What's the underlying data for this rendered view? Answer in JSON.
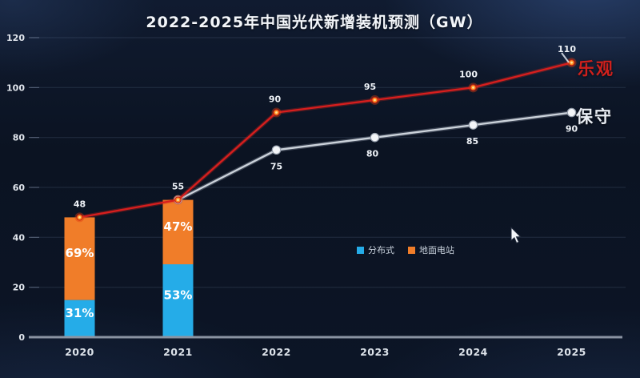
{
  "chart_data": {
    "type": "combo-bar-line",
    "title": "2022-2025年中国光伏新增装机预测（GW）",
    "categories": [
      "2020",
      "2021",
      "2022",
      "2023",
      "2024",
      "2025"
    ],
    "y_axis": {
      "min": 0,
      "max": 120,
      "tick_step": 20,
      "tick_labels": [
        "0",
        "20",
        "40",
        "60",
        "80",
        "100",
        "120"
      ]
    },
    "grid": true,
    "bar_series": [
      {
        "name": "分布式",
        "color": "#25ace8",
        "share_pct": [
          31,
          53
        ],
        "values_gw": [
          14.9,
          29.2
        ],
        "labels": [
          "31%",
          "53%"
        ]
      },
      {
        "name": "地面电站",
        "color": "#f07d29",
        "share_pct": [
          69,
          47
        ],
        "values_gw": [
          33.1,
          25.8
        ],
        "labels": [
          "69%",
          "47%"
        ]
      }
    ],
    "bar_totals": {
      "values": [
        48,
        55
      ],
      "labels": [
        "48",
        "55"
      ]
    },
    "line_series": [
      {
        "name": "乐观",
        "color": "#d71e1e",
        "glow": "rgba(220,40,25,0.30)",
        "marker": "red-glow-dot",
        "values": [
          48,
          55,
          90,
          95,
          100,
          110
        ],
        "labels": [
          "48",
          "55",
          "90",
          "95",
          "100",
          "110"
        ],
        "label_side": "above",
        "label_dx": [
          0,
          0,
          -2,
          -6,
          -6,
          -6
        ]
      },
      {
        "name": "保守",
        "color": "#ccd3db",
        "glow": "rgba(210,220,235,0.25)",
        "marker": "white-dot",
        "values": [
          null,
          55,
          75,
          80,
          85,
          90
        ],
        "labels": [
          "",
          "",
          "75",
          "80",
          "85",
          "90"
        ],
        "label_side": "below",
        "label_dx": [
          0,
          0,
          0,
          -3,
          -1,
          0
        ]
      }
    ],
    "legend": [
      {
        "label": "分布式",
        "color": "#25ace8"
      },
      {
        "label": "地面电站",
        "color": "#f07d29"
      }
    ],
    "end_labels": [
      {
        "text": "乐观",
        "color": "#cf201c"
      },
      {
        "text": "保守",
        "color": "#e9edf3"
      }
    ],
    "legend_position": "inside-center-right",
    "colors": {
      "background": "#0c1424",
      "axis": "#8a93a2",
      "grid": "rgba(150,170,205,0.17)",
      "tick_text": "#e2e7ee"
    }
  },
  "cursor": {
    "icon": "arrow-cursor"
  }
}
